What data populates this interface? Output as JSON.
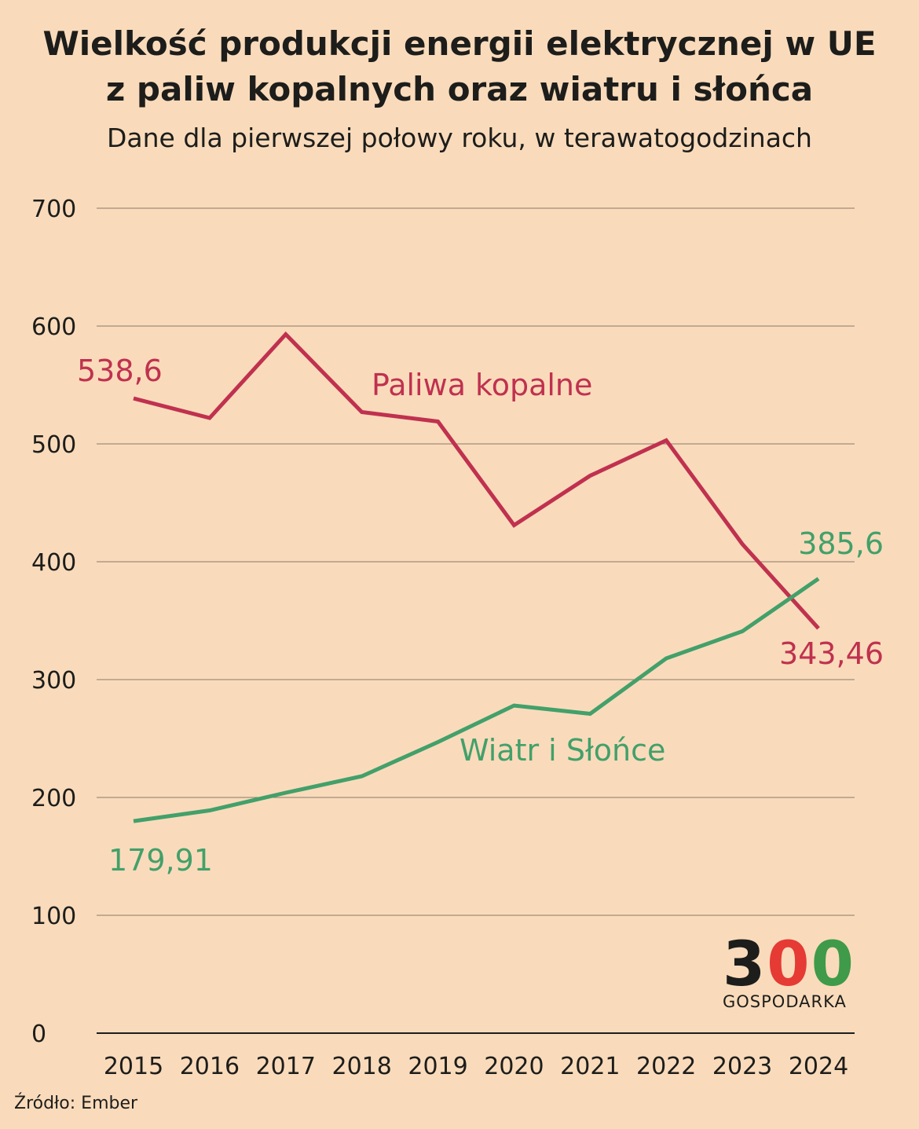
{
  "title_line1": "Wielkość produkcji energii elektrycznej w UE",
  "title_line2": "z paliw kopalnych oraz wiatru i słońca",
  "subtitle": "Dane dla pierwszej połowy roku, w terawatogodzinach",
  "source": "Źródło: Ember",
  "logo": {
    "digits": [
      "3",
      "0",
      "0"
    ],
    "text": "GOSPODARKA",
    "colors": [
      "#1d1d1b",
      "#e63a35",
      "#3f9a4a"
    ]
  },
  "chart_data": {
    "type": "line",
    "title": "Wielkość produkcji energii elektrycznej w UE z paliw kopalnych oraz wiatru i słońca",
    "xlabel": "",
    "ylabel": "",
    "x": [
      "2015",
      "2016",
      "2017",
      "2018",
      "2019",
      "2020",
      "2021",
      "2022",
      "2023",
      "2024"
    ],
    "ylim": [
      0,
      700
    ],
    "yticks": [
      "0",
      "100",
      "200",
      "300",
      "400",
      "500",
      "600",
      "700"
    ],
    "grid": true,
    "series": [
      {
        "name": "Paliwa kopalne",
        "color": "#c0314f",
        "values": [
          538.6,
          522,
          593,
          527,
          519,
          431,
          473,
          503,
          415,
          343.46
        ],
        "labels": {
          "first": "538,6",
          "last": "343,46"
        }
      },
      {
        "name": "Wiatr i Słońce",
        "color": "#43a06a",
        "values": [
          179.91,
          189,
          204,
          218,
          247,
          278,
          271,
          318,
          341,
          385.6
        ],
        "labels": {
          "first": "179,91",
          "last": "385,6"
        }
      }
    ]
  }
}
